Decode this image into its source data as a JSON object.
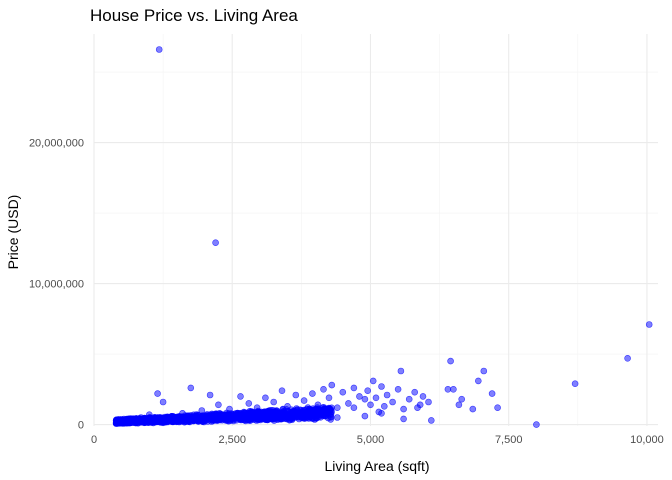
{
  "chart_data": {
    "type": "scatter",
    "title": "House Price vs. Living Area",
    "xlabel": "Living Area (sqft)",
    "ylabel": "Price (USD)",
    "xlim": [
      0,
      10200
    ],
    "ylim": [
      -100000,
      27700000
    ],
    "x_ticks": [
      0,
      2500,
      5000,
      7500,
      10000
    ],
    "x_tick_labels": [
      "0",
      "2,500",
      "5,000",
      "7,500",
      "10,000"
    ],
    "y_ticks": [
      0,
      10000000,
      20000000
    ],
    "y_tick_labels": [
      "0",
      "10,000,000",
      "20,000,000"
    ],
    "grid": true,
    "legend": "none",
    "point_color": "#0000ff",
    "point_opacity": 0.5,
    "series": [
      {
        "values": [
          [
            1180,
            26600000
          ],
          [
            2200,
            12900000
          ],
          [
            10040,
            7100000
          ],
          [
            9650,
            4700000
          ],
          [
            8700,
            2900000
          ],
          [
            8000,
            0
          ],
          [
            7300,
            1200000
          ],
          [
            7050,
            3800000
          ],
          [
            7200,
            2200000
          ],
          [
            6950,
            3100000
          ],
          [
            6850,
            1100000
          ],
          [
            6650,
            1800000
          ],
          [
            6600,
            1400000
          ],
          [
            6500,
            2500000
          ],
          [
            6400,
            2500000
          ],
          [
            6450,
            4500000
          ],
          [
            6050,
            1600000
          ],
          [
            5950,
            2000000
          ],
          [
            5900,
            1400000
          ],
          [
            5850,
            1200000
          ],
          [
            5800,
            2300000
          ],
          [
            5700,
            1800000
          ],
          [
            5600,
            1100000
          ],
          [
            5550,
            3800000
          ],
          [
            5500,
            2500000
          ],
          [
            5400,
            1600000
          ],
          [
            5300,
            2100000
          ],
          [
            5250,
            1300000
          ],
          [
            5200,
            2700000
          ],
          [
            5150,
            900000
          ],
          [
            5100,
            1900000
          ],
          [
            5050,
            3100000
          ],
          [
            5000,
            1400000
          ],
          [
            4950,
            2400000
          ],
          [
            4900,
            1800000
          ],
          [
            4800,
            2000000
          ],
          [
            4700,
            2600000
          ],
          [
            4600,
            1500000
          ],
          [
            4500,
            2300000
          ],
          [
            4400,
            1200000
          ],
          [
            4300,
            2800000
          ],
          [
            4250,
            1900000
          ],
          [
            4150,
            2500000
          ],
          [
            4050,
            1400000
          ],
          [
            3950,
            2200000
          ],
          [
            3800,
            1700000
          ],
          [
            3650,
            2100000
          ],
          [
            3500,
            1300000
          ],
          [
            3400,
            2400000
          ],
          [
            3250,
            1600000
          ],
          [
            3100,
            1900000
          ],
          [
            2950,
            1200000
          ],
          [
            2800,
            1500000
          ],
          [
            2650,
            2000000
          ],
          [
            2450,
            1100000
          ],
          [
            2250,
            1400000
          ],
          [
            2100,
            2100000
          ],
          [
            1950,
            1000000
          ],
          [
            1750,
            2600000
          ],
          [
            1600,
            800000
          ],
          [
            1250,
            1600000
          ],
          [
            1150,
            2200000
          ],
          [
            1000,
            700000
          ],
          [
            850,
            500000
          ],
          [
            700,
            400000
          ],
          [
            550,
            250000
          ],
          [
            400,
            300000
          ],
          [
            4700,
            1200000
          ],
          [
            4400,
            500000
          ],
          [
            4900,
            600000
          ],
          [
            5200,
            800000
          ],
          [
            5600,
            400000
          ],
          [
            6100,
            300000
          ],
          [
            3900,
            900000
          ],
          [
            3600,
            700000
          ],
          [
            3300,
            1000000
          ],
          [
            2700,
            600000
          ],
          [
            2400,
            700000
          ],
          [
            2000,
            500000
          ],
          [
            1800,
            400000
          ],
          [
            1500,
            300000
          ],
          [
            1300,
            200000
          ]
        ]
      }
    ],
    "dense_cluster": {
      "x_range": [
        400,
        4300
      ],
      "y_center_at_x0": 150000,
      "slope_per_sqft": 200,
      "spread": 400000,
      "count": 1400
    }
  }
}
